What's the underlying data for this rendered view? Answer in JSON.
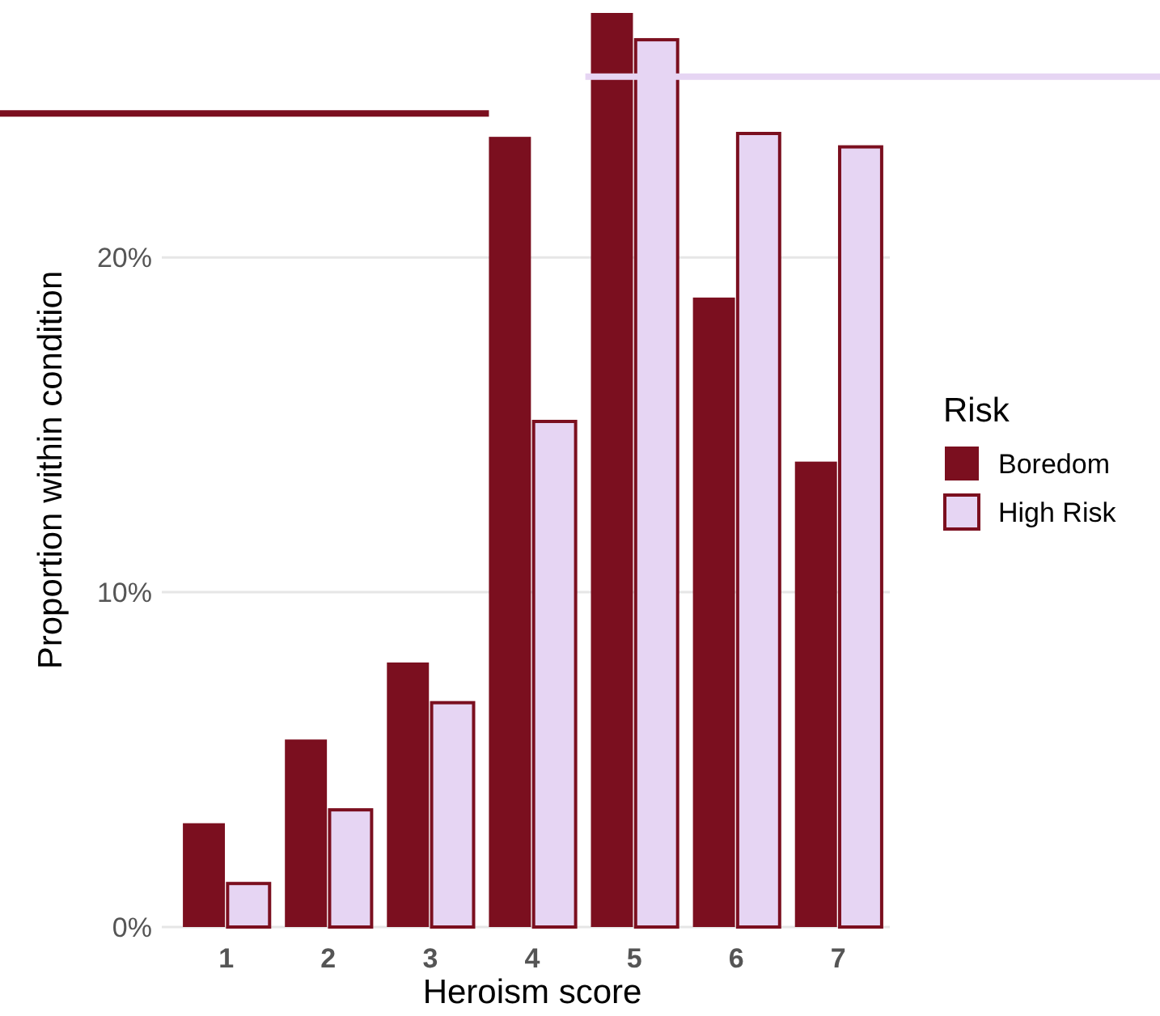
{
  "chart_data": {
    "type": "bar",
    "xlabel": "Heroism score",
    "ylabel": "Proportion within condition",
    "legend_title": "Risk",
    "legend": "right",
    "grid": "y",
    "categories": [
      "1",
      "2",
      "3",
      "4",
      "5",
      "6",
      "7"
    ],
    "series": [
      {
        "name": "Boredom",
        "color": "#7b0f1f",
        "values": [
          3.1,
          5.6,
          7.9,
          23.6,
          27.3,
          18.8,
          13.9
        ]
      },
      {
        "name": "High Risk",
        "color": "#e6d5f3",
        "values": [
          1.3,
          3.5,
          6.7,
          15.1,
          26.5,
          23.7,
          23.3
        ]
      }
    ],
    "ylim": [
      0,
      27.3
    ],
    "yticks": [
      {
        "value": 0,
        "label": "0%"
      },
      {
        "value": 10,
        "label": "10%"
      },
      {
        "value": 20,
        "label": "20%"
      }
    ],
    "ref_lines": [
      {
        "axis": "y",
        "value": 24.3,
        "color": "#7b0f1f"
      },
      {
        "axis": "y",
        "value": 25.4,
        "color": "#e6d5f3"
      }
    ]
  }
}
